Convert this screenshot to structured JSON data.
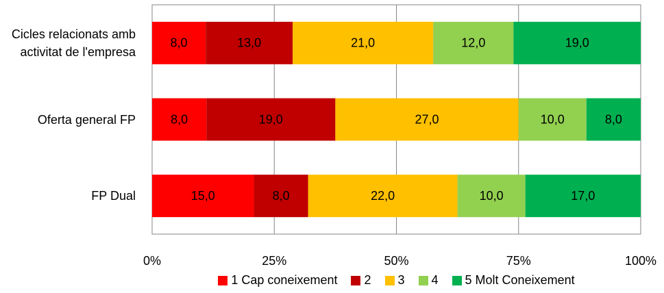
{
  "chart_data": {
    "type": "bar",
    "orientation": "horizontal",
    "stack": "percent",
    "categories": [
      "Cicles relacionats amb activitat de l'empresa",
      "Oferta general FP",
      "FP Dual"
    ],
    "series": [
      {
        "name": "1 Cap coneixement",
        "color": "#ff0000",
        "values": [
          8,
          8,
          15
        ],
        "value_labels": [
          "8,0",
          "8,0",
          "15,0"
        ]
      },
      {
        "name": "2",
        "color": "#c00000",
        "values": [
          13,
          19,
          8
        ],
        "value_labels": [
          "13,0",
          "19,0",
          "8,0"
        ]
      },
      {
        "name": "3",
        "color": "#ffc000",
        "values": [
          21,
          27,
          22
        ],
        "value_labels": [
          "21,0",
          "27,0",
          "22,0"
        ]
      },
      {
        "name": "4",
        "color": "#92d050",
        "values": [
          12,
          10,
          10
        ],
        "value_labels": [
          "12,0",
          "10,0",
          "10,0"
        ]
      },
      {
        "name": "5 Molt Coneixement",
        "color": "#00b050",
        "values": [
          19,
          8,
          17
        ],
        "value_labels": [
          "19,0",
          "8,0",
          "17,0"
        ]
      }
    ],
    "xlim": [
      0,
      100
    ],
    "xticks": [
      {
        "value": 0,
        "label": "0%"
      },
      {
        "value": 25,
        "label": "25%"
      },
      {
        "value": 50,
        "label": "50%"
      },
      {
        "value": 75,
        "label": "75%"
      },
      {
        "value": 100,
        "label": "100%"
      }
    ],
    "grid": true,
    "legend": "bottom"
  }
}
